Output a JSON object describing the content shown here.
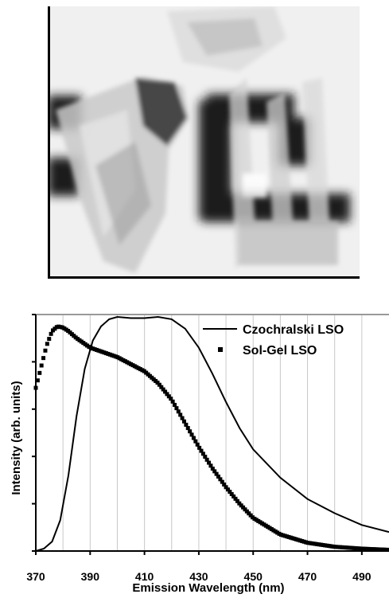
{
  "photo": {
    "subject": "photograph of transparent crystal samples over dark printed letters"
  },
  "chart_data": {
    "type": "line",
    "title": "",
    "xlabel": "Emission Wavelength (nm)",
    "ylabel": "Intensity (arb. units)",
    "xlim": [
      370,
      500
    ],
    "ylim": [
      0,
      1.0
    ],
    "xticks": [
      370,
      390,
      410,
      430,
      450,
      470,
      490
    ],
    "grid": "vertical",
    "legend": "top-right",
    "series": [
      {
        "name": "Czochralski LSO",
        "marker": "line",
        "color": "#000000",
        "x": [
          370,
          373,
          376,
          379,
          382,
          385,
          388,
          391,
          394,
          397,
          400,
          405,
          410,
          415,
          420,
          425,
          430,
          435,
          440,
          445,
          450,
          460,
          470,
          480,
          490,
          500
        ],
        "y": [
          0.0,
          0.01,
          0.04,
          0.13,
          0.32,
          0.57,
          0.77,
          0.89,
          0.95,
          0.98,
          0.99,
          0.985,
          0.985,
          0.99,
          0.98,
          0.94,
          0.86,
          0.75,
          0.63,
          0.52,
          0.43,
          0.31,
          0.22,
          0.16,
          0.11,
          0.08
        ]
      },
      {
        "name": "Sol-Gel LSO",
        "marker": "square",
        "color": "#000000",
        "x": [
          370,
          372,
          374,
          376,
          378,
          380,
          382,
          385,
          390,
          395,
          400,
          405,
          410,
          415,
          420,
          425,
          430,
          435,
          440,
          445,
          450,
          460,
          470,
          480,
          490,
          500
        ],
        "y": [
          0.69,
          0.78,
          0.87,
          0.93,
          0.95,
          0.945,
          0.93,
          0.9,
          0.86,
          0.84,
          0.82,
          0.79,
          0.76,
          0.71,
          0.64,
          0.54,
          0.44,
          0.35,
          0.27,
          0.2,
          0.14,
          0.07,
          0.035,
          0.018,
          0.01,
          0.005
        ]
      }
    ]
  }
}
